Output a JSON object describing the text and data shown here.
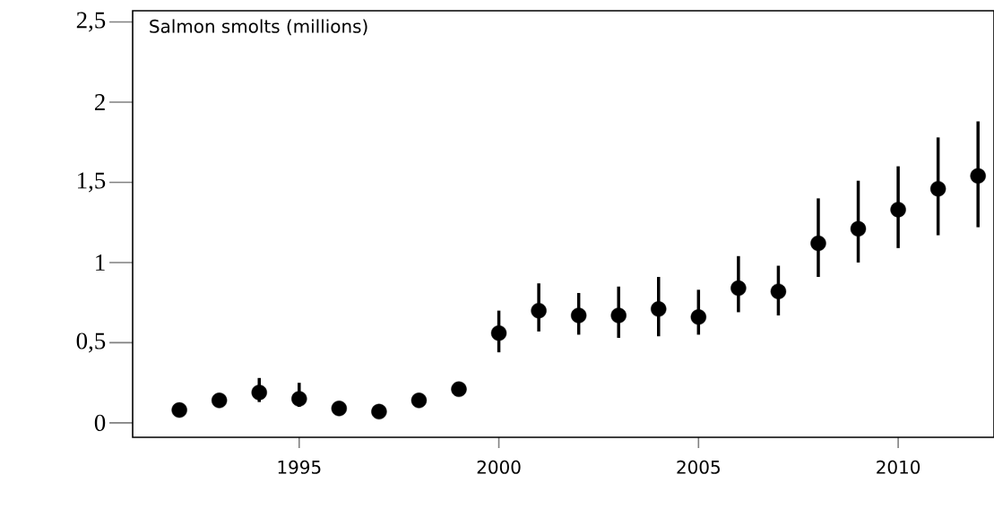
{
  "chart_data": {
    "type": "scatter",
    "title": "Salmon smolts (millions)",
    "x": [
      1992,
      1993,
      1994,
      1995,
      1996,
      1997,
      1998,
      1999,
      2000,
      2001,
      2002,
      2003,
      2004,
      2005,
      2006,
      2007,
      2008,
      2009,
      2010,
      2011,
      2012
    ],
    "series": [
      {
        "color": "#000000",
        "values": [
          0.08,
          0.14,
          0.19,
          0.15,
          0.09,
          0.07,
          0.14,
          0.21,
          0.56,
          0.7,
          0.67,
          0.67,
          0.71,
          0.66,
          0.84,
          0.82,
          1.12,
          1.21,
          1.33,
          1.46,
          1.54
        ],
        "errors": [
          null,
          null,
          [
            0.13,
            0.28
          ],
          [
            0.1,
            0.25
          ],
          null,
          null,
          null,
          null,
          [
            0.44,
            0.7
          ],
          [
            0.57,
            0.87
          ],
          [
            0.55,
            0.81
          ],
          [
            0.53,
            0.85
          ],
          [
            0.54,
            0.91
          ],
          [
            0.55,
            0.83
          ],
          [
            0.69,
            1.04
          ],
          [
            0.67,
            0.98
          ],
          [
            0.91,
            1.4
          ],
          [
            1.0,
            1.51
          ],
          [
            1.09,
            1.6
          ],
          [
            1.17,
            1.78
          ],
          [
            1.22,
            1.88
          ]
        ]
      }
    ],
    "xlim": [
      1990.83,
      2012.4
    ],
    "ylim": [
      -0.09,
      2.57
    ],
    "xticks": [
      1995,
      2000,
      2005,
      2010
    ],
    "yticks": [
      0,
      {
        "value": 0.5,
        "label": "0,5"
      },
      1,
      {
        "value": 1.5,
        "label": "1,5"
      },
      2,
      {
        "value": 2.5,
        "label": "2,5"
      }
    ],
    "grid": false
  }
}
